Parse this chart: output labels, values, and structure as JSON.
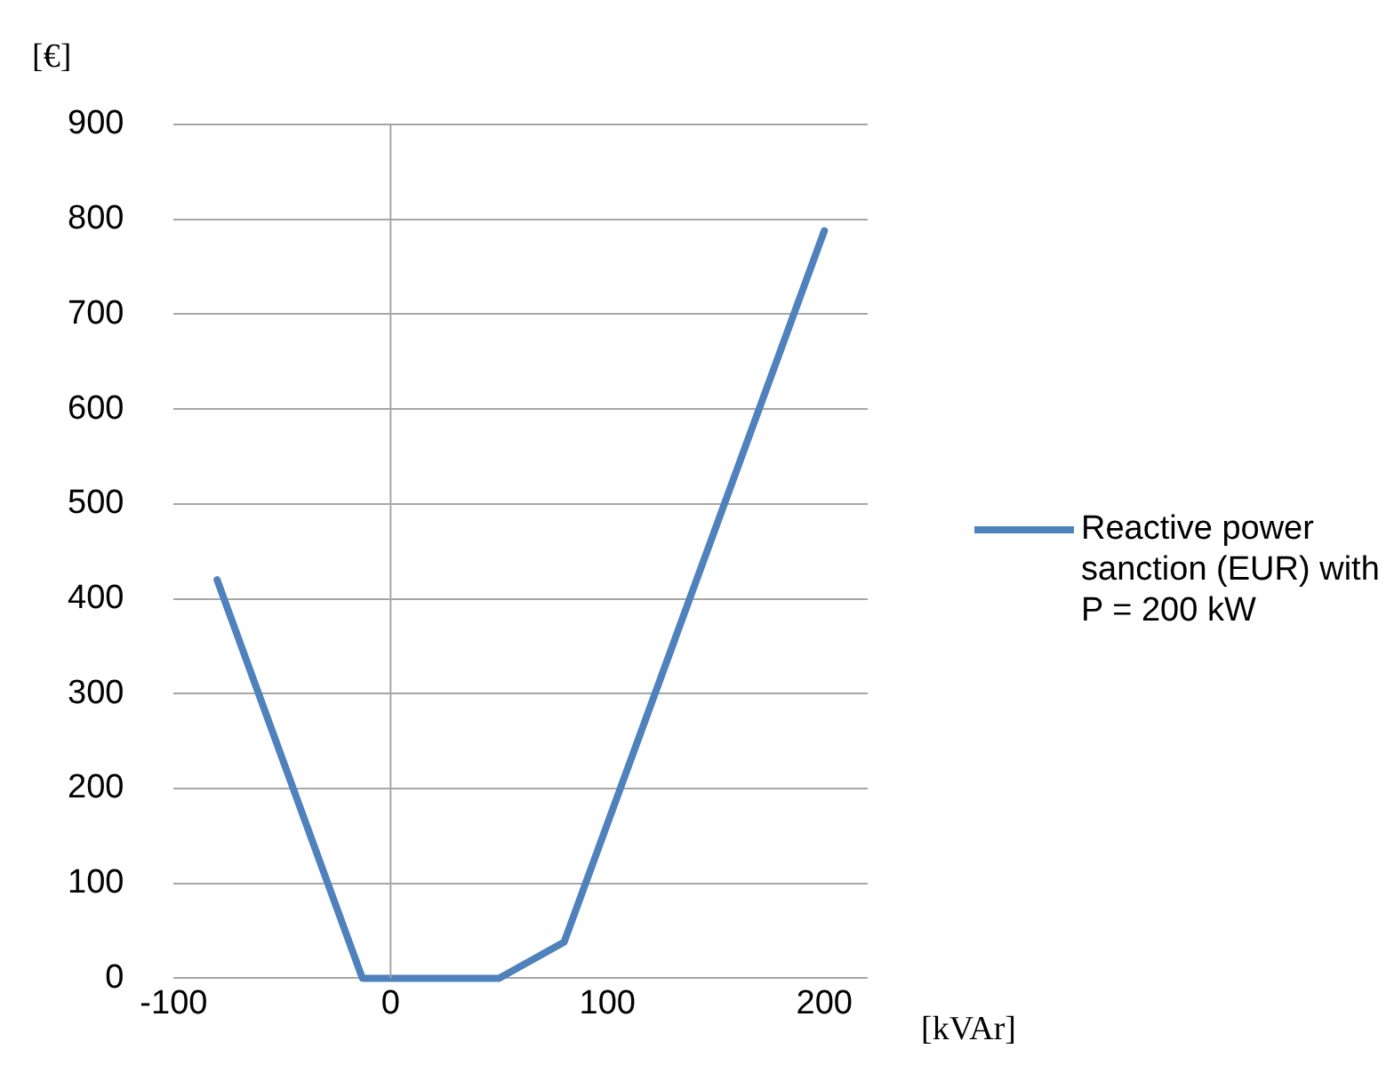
{
  "chart_data": {
    "type": "line",
    "xlabel": "[kVAr]",
    "ylabel": "[€]",
    "x": [
      -80,
      -13,
      50,
      80,
      200
    ],
    "series": [
      {
        "name": "Reactive power sanction (EUR) with P = 200 kW",
        "color": "#4f81bd",
        "values": [
          420,
          0,
          0,
          38,
          788
        ]
      }
    ],
    "xlim": [
      -100,
      220
    ],
    "xticks": [
      -100,
      0,
      100,
      200
    ],
    "ylim": [
      0,
      900
    ],
    "yticks": [
      0,
      100,
      200,
      300,
      400,
      500,
      600,
      700,
      800,
      900
    ],
    "ref_lines": [
      {
        "axis": "x",
        "value": 0,
        "color": "#a6a6a6"
      }
    ],
    "grid": "y",
    "legend": "right",
    "marker": "none",
    "line_style": "solid"
  }
}
